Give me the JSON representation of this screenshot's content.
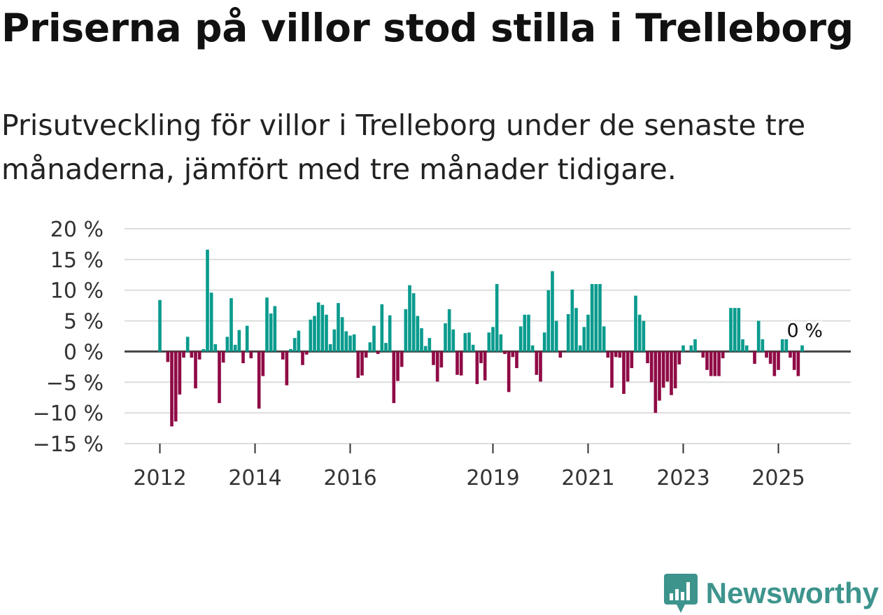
{
  "title": "Priserna på villor stod stilla i Trelleborg",
  "subtitle": "Prisutveckling för villor i Trelleborg under de senaste tre månaderna, jämfört med tre månader tidigare.",
  "brand": "Newsworthy",
  "colors": {
    "positive": "#0a9b8e",
    "negative": "#8f0a45",
    "grid": "#dddddd",
    "zero": "#444444",
    "brand": "#3d948d"
  },
  "chart_data": {
    "type": "bar",
    "title": "Priserna på villor stod stilla i Trelleborg",
    "xlabel": "",
    "ylabel": "",
    "ylim": [
      -15,
      20
    ],
    "yticks": [
      20,
      15,
      10,
      5,
      0,
      -5,
      -10,
      -15
    ],
    "ytick_labels": [
      "20 %",
      "15 %",
      "10 %",
      "5 %",
      "0 %",
      "−5 %",
      "−10 %",
      "−15 %"
    ],
    "x_start": 2012,
    "x_step_months": 1,
    "xticks": [
      2012,
      2014,
      2016,
      2019,
      2021,
      2023,
      2025
    ],
    "xtick_labels": [
      "2012",
      "2014",
      "2016",
      "2019",
      "2021",
      "2023",
      "2025"
    ],
    "last_value_label": "0 %",
    "values": [
      8.4,
      0.0,
      -1.7,
      -12.2,
      -11.4,
      -7.0,
      -1.0,
      2.4,
      -1.0,
      -6.0,
      -1.3,
      0.4,
      16.6,
      9.6,
      1.2,
      -8.4,
      -1.8,
      2.4,
      8.7,
      1.1,
      3.5,
      -1.9,
      4.2,
      -1.1,
      0.0,
      -9.3,
      -4.0,
      8.8,
      6.2,
      7.4,
      0.0,
      -1.3,
      -5.5,
      0.4,
      2.2,
      3.4,
      -2.2,
      -0.5,
      5.2,
      5.8,
      8.0,
      7.6,
      6.0,
      1.2,
      3.6,
      7.9,
      5.6,
      3.3,
      2.6,
      2.8,
      -4.3,
      -3.9,
      -1.0,
      1.5,
      4.2,
      -0.4,
      7.7,
      1.4,
      5.9,
      -8.4,
      -4.8,
      -2.5,
      6.9,
      10.8,
      9.5,
      5.8,
      3.8,
      0.9,
      2.2,
      -2.2,
      -4.9,
      -2.6,
      4.6,
      6.9,
      3.6,
      -3.8,
      -3.9,
      3.0,
      3.1,
      1.1,
      -5.3,
      -1.9,
      -4.7,
      3.1,
      4.0,
      11.0,
      2.8,
      -0.4,
      -6.6,
      -0.9,
      -2.7,
      4.1,
      6.0,
      6.0,
      1.0,
      -3.8,
      -4.9,
      3.1,
      10.0,
      13.1,
      5.0,
      -1.0,
      0.0,
      6.1,
      10.1,
      7.1,
      1.0,
      4.0,
      6.0,
      11.0,
      11.0,
      11.0,
      4.1,
      -1.0,
      -5.9,
      -0.9,
      -1.0,
      -6.9,
      -4.9,
      -2.7,
      9.1,
      6.0,
      5.0,
      -1.9,
      -5.0,
      -10.0,
      -8.0,
      -5.9,
      -4.9,
      -7.1,
      -6.0,
      -2.1,
      1.0,
      0.0,
      1.0,
      2.0,
      0.0,
      -1.0,
      -3.0,
      -4.0,
      -4.0,
      -4.0,
      -1.1,
      0.0,
      7.1,
      7.1,
      7.1,
      2.0,
      1.0,
      0.0,
      -2.0,
      5.0,
      2.0,
      -1.0,
      -2.0,
      -4.0,
      -3.0,
      2.0,
      2.0,
      -1.0,
      -3.0,
      -4.0,
      1.0,
      0.0
    ]
  }
}
